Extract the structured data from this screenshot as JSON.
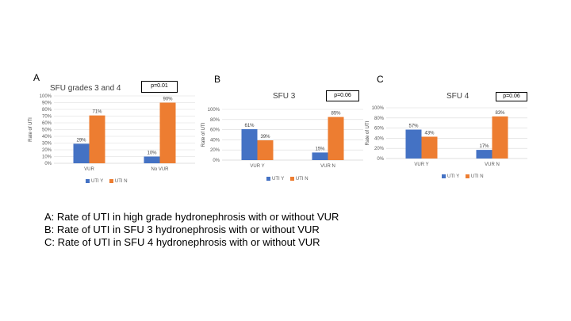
{
  "colors": {
    "uti_y": "#4472C4",
    "uti_n": "#ED7D31",
    "grid": "#D9D9D9",
    "axis": "#BFBFBF"
  },
  "chart_data": [
    {
      "type": "bar",
      "panel": "A",
      "title": "SFU grades 3 and 4",
      "pvalue": "p=0.01",
      "ylabel": "Rate of UTI",
      "ylim": [
        0,
        100
      ],
      "yticks": [
        "0%",
        "10%",
        "20%",
        "30%",
        "40%",
        "50%",
        "60%",
        "70%",
        "80%",
        "90%",
        "100%"
      ],
      "categories": [
        "VUR",
        "No VUR"
      ],
      "series": [
        {
          "name": "UTI Y",
          "values": [
            29,
            10
          ],
          "labels": [
            "29%",
            "10%"
          ]
        },
        {
          "name": "UTI N",
          "values": [
            71,
            90
          ],
          "labels": [
            "71%",
            "90%"
          ]
        }
      ],
      "legend": "bottom"
    },
    {
      "type": "bar",
      "panel": "B",
      "title": "SFU 3",
      "pvalue": "p=0.06",
      "ylabel": "Rate of UTI",
      "ylim": [
        0,
        100
      ],
      "yticks": [
        "0%",
        "20%",
        "40%",
        "60%",
        "80%",
        "100%"
      ],
      "categories": [
        "VUR Y",
        "VUR N"
      ],
      "series": [
        {
          "name": "UTI Y",
          "values": [
            61,
            15
          ],
          "labels": [
            "61%",
            "15%"
          ]
        },
        {
          "name": "UTI N",
          "values": [
            39,
            85
          ],
          "labels": [
            "39%",
            "85%"
          ]
        }
      ],
      "legend": "bottom"
    },
    {
      "type": "bar",
      "panel": "C",
      "title": "SFU 4",
      "pvalue": "p=0.06",
      "ylabel": "Rate of UTI",
      "ylim": [
        0,
        100
      ],
      "yticks": [
        "0%",
        "20%",
        "40%",
        "60%",
        "80%",
        "100%"
      ],
      "categories": [
        "VUR Y",
        "VUR N"
      ],
      "series": [
        {
          "name": "UTI Y",
          "values": [
            57,
            17
          ],
          "labels": [
            "57%",
            "17%"
          ]
        },
        {
          "name": "UTI N",
          "values": [
            43,
            83
          ],
          "labels": [
            "43%",
            "83%"
          ]
        }
      ],
      "legend": "bottom"
    }
  ],
  "captions": [
    "A: Rate of UTI in high grade hydronephrosis with or without VUR",
    "B: Rate of UTI in SFU 3 hydronephrosis with or without VUR",
    "C: Rate of UTI in SFU 4 hydronephrosis with or without VUR"
  ]
}
